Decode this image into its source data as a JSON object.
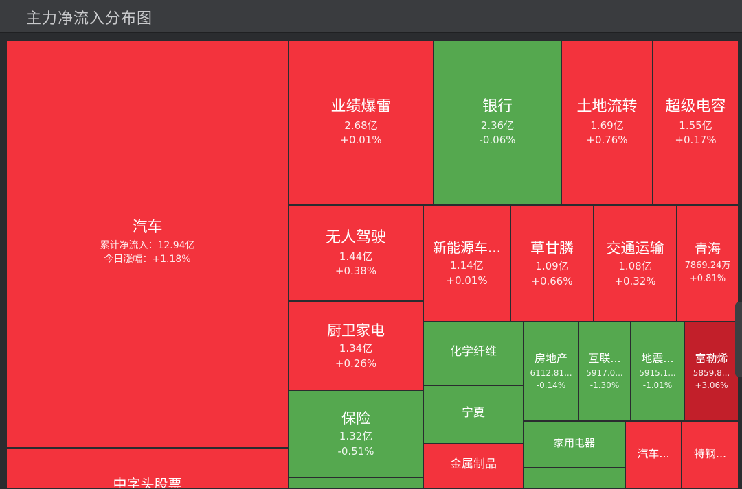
{
  "header": {
    "title": "主力净流入分布图"
  },
  "colors": {
    "up": "#f3333d",
    "down": "#55a84f",
    "strong_up": "#c21f2a",
    "border": "#2a2c2f"
  },
  "chart_data": {
    "type": "treemap",
    "title": "主力净流入分布图",
    "tiles": [
      {
        "name": "汽车",
        "value": "累计净流入：12.94亿",
        "change": "今日涨幅：+1.18%",
        "dir": "up"
      },
      {
        "name": "中字头股票",
        "value": "",
        "change": "",
        "dir": "up"
      },
      {
        "name": "业绩爆雷",
        "value": "2.68亿",
        "change": "+0.01%",
        "dir": "up"
      },
      {
        "name": "银行",
        "value": "2.36亿",
        "change": "-0.06%",
        "dir": "down"
      },
      {
        "name": "土地流转",
        "value": "1.69亿",
        "change": "+0.76%",
        "dir": "up"
      },
      {
        "name": "超级电容",
        "value": "1.55亿",
        "change": "+0.17%",
        "dir": "up"
      },
      {
        "name": "无人驾驶",
        "value": "1.44亿",
        "change": "+0.38%",
        "dir": "up"
      },
      {
        "name": "新能源车...",
        "value": "1.14亿",
        "change": "+0.01%",
        "dir": "up"
      },
      {
        "name": "草甘膦",
        "value": "1.09亿",
        "change": "+0.66%",
        "dir": "up"
      },
      {
        "name": "交通运输",
        "value": "1.08亿",
        "change": "+0.32%",
        "dir": "up"
      },
      {
        "name": "青海",
        "value": "7869.24万",
        "change": "+0.81%",
        "dir": "up"
      },
      {
        "name": "厨卫家电",
        "value": "1.34亿",
        "change": "+0.26%",
        "dir": "up"
      },
      {
        "name": "化学纤维",
        "value": "",
        "change": "",
        "dir": "down"
      },
      {
        "name": "房地产",
        "value": "6112.81...",
        "change": "-0.14%",
        "dir": "down"
      },
      {
        "name": "互联...",
        "value": "5917.0...",
        "change": "-1.30%",
        "dir": "down"
      },
      {
        "name": "地震...",
        "value": "5915.1...",
        "change": "-1.01%",
        "dir": "down"
      },
      {
        "name": "富勒烯",
        "value": "5859.8...",
        "change": "+3.06%",
        "dir": "strong_up"
      },
      {
        "name": "保险",
        "value": "1.32亿",
        "change": "-0.51%",
        "dir": "down"
      },
      {
        "name": "宁夏",
        "value": "",
        "change": "",
        "dir": "down"
      },
      {
        "name": "家用电器",
        "value": "",
        "change": "",
        "dir": "down"
      },
      {
        "name": "金属制品",
        "value": "",
        "change": "",
        "dir": "up"
      },
      {
        "name": "汽车...",
        "value": "",
        "change": "",
        "dir": "up"
      },
      {
        "name": "特钢...",
        "value": "",
        "change": "",
        "dir": "up"
      },
      {
        "name": "",
        "value": "",
        "change": "",
        "dir": "down"
      },
      {
        "name": "",
        "value": "",
        "change": "",
        "dir": "down"
      }
    ]
  }
}
